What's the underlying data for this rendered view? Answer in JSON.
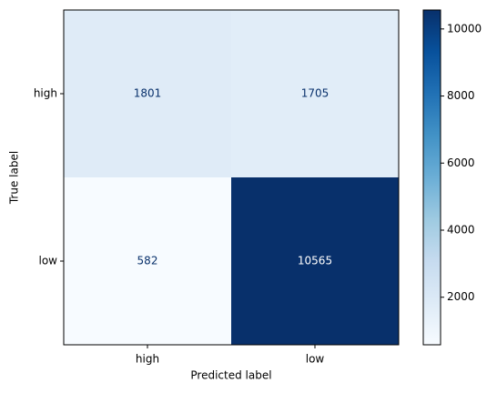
{
  "chart_data": {
    "type": "heatmap",
    "x_categories": [
      "high",
      "low"
    ],
    "y_categories": [
      "high",
      "low"
    ],
    "values": [
      [
        1801,
        1705
      ],
      [
        582,
        10565
      ]
    ],
    "xlabel": "Predicted label",
    "ylabel": "True label",
    "colormap": [
      "#f7fbff",
      "#deebf7",
      "#c6dbef",
      "#9ecae1",
      "#6baed6",
      "#4292c6",
      "#2171b5",
      "#08519c",
      "#08306b"
    ],
    "text_colors": [
      "#08306b",
      "#ffffff"
    ],
    "colorbar_lim": [
      582,
      10565
    ],
    "colorbar_ticks": [
      2000,
      4000,
      6000,
      8000,
      10000
    ]
  }
}
